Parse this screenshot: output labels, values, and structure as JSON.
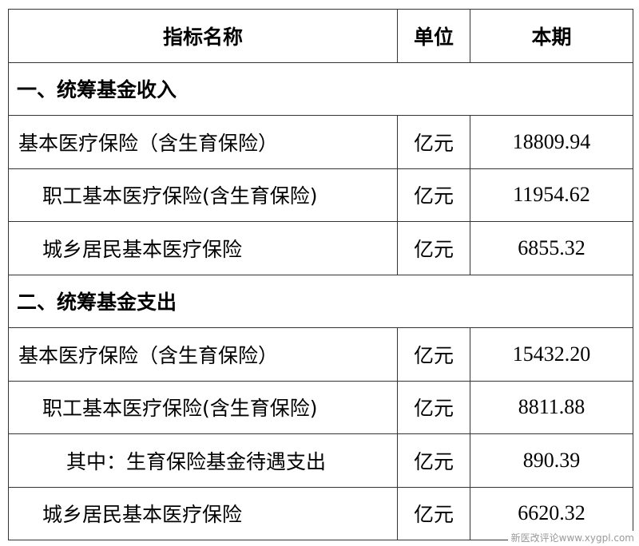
{
  "header": {
    "name": "指标名称",
    "unit": "单位",
    "value": "本期"
  },
  "sections": [
    {
      "title": "一、统筹基金收入",
      "rows": [
        {
          "name": "基本医疗保险（含生育保险）",
          "unit": "亿元",
          "value": "18809.94"
        },
        {
          "name": "职工基本医疗保险(含生育保险)",
          "unit": "亿元",
          "value": "11954.62"
        },
        {
          "name": "城乡居民基本医疗保险",
          "unit": "亿元",
          "value": "6855.32"
        }
      ]
    },
    {
      "title": "二、统筹基金支出",
      "rows": [
        {
          "name": "基本医疗保险（含生育保险）",
          "unit": "亿元",
          "value": "15432.20"
        },
        {
          "name": "职工基本医疗保险(含生育保险)",
          "unit": "亿元",
          "value": "8811.88"
        },
        {
          "name": "其中：生育保险基金待遇支出",
          "unit": "亿元",
          "value": "890.39"
        },
        {
          "name": "城乡居民基本医疗保险",
          "unit": "亿元",
          "value": "6620.32"
        }
      ]
    }
  ],
  "watermark": "新医改评论www.xygpl.com"
}
